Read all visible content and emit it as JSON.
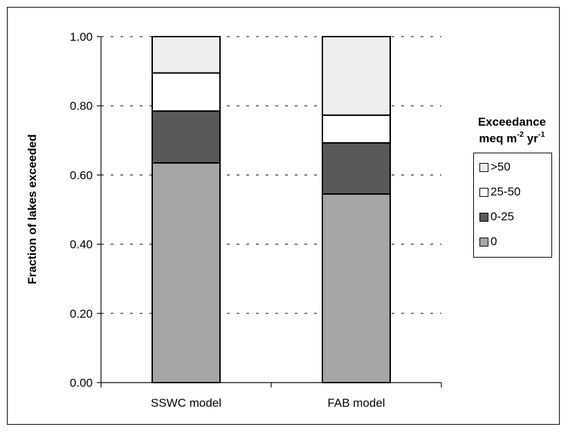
{
  "chart_data": {
    "type": "bar",
    "stacked": true,
    "categories": [
      "SSWC model",
      "FAB model"
    ],
    "series": [
      {
        "name": "0",
        "values": [
          0.635,
          0.545
        ],
        "color": "#a6a6a6"
      },
      {
        "name": "0-25",
        "values": [
          0.15,
          0.148
        ],
        "color": "#595959"
      },
      {
        "name": "25-50",
        "values": [
          0.11,
          0.08
        ],
        "color": "#ffffff"
      },
      {
        "name": ">50",
        "values": [
          0.105,
          0.227
        ],
        "color": "#eeeeee"
      }
    ],
    "ylabel": "Fraction of lakes exceeded",
    "xlabel": "",
    "ylim": [
      0,
      1
    ],
    "yticks": [
      "0.00",
      "0.20",
      "0.40",
      "0.60",
      "0.80",
      "1.00"
    ],
    "grid": "horizontal dashed",
    "legend": {
      "title_line1": "Exceedance",
      "title_line2": {
        "a": "meq m",
        "b": "-2",
        "c": " yr",
        "d": "-1"
      },
      "entries": [
        ">50",
        "25-50",
        "0-25",
        "0"
      ],
      "placement": "right"
    }
  }
}
